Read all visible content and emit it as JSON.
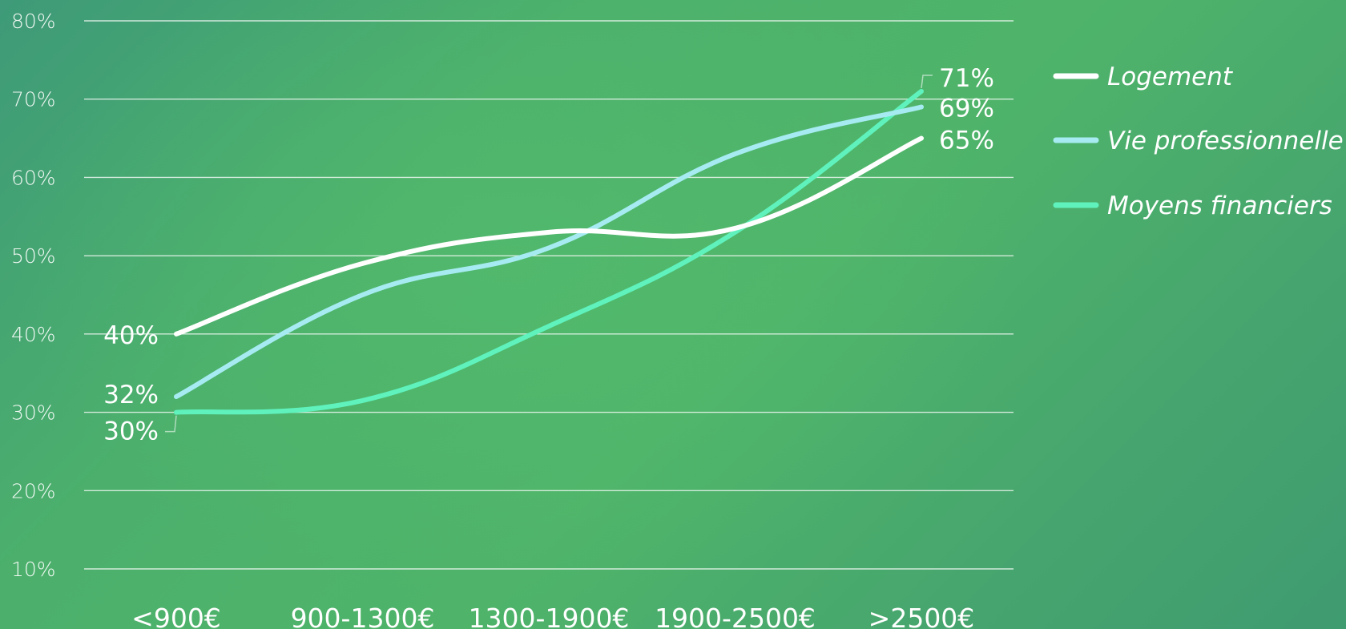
{
  "chart_data": {
    "type": "line",
    "title": "",
    "xlabel": "",
    "ylabel": "",
    "categories": [
      "<900€",
      "900-1300€",
      "1300-1900€",
      "1900-2500€",
      ">2500€"
    ],
    "y_ticks": [
      "10%",
      "20%",
      "30%",
      "40%",
      "50%",
      "60%",
      "70%",
      "80%"
    ],
    "ylim": [
      10,
      80
    ],
    "grid": true,
    "legend_position": "right",
    "series": [
      {
        "name": "Logement",
        "color": "#ffffff",
        "values": [
          40,
          49,
          53,
          53.5,
          65
        ],
        "start_label": "40%",
        "end_label": "65%"
      },
      {
        "name": "Vie professionnelle",
        "color": "#a7ebf2",
        "values": [
          32,
          45,
          51,
          63,
          69
        ],
        "start_label": "32%",
        "end_label": "69%"
      },
      {
        "name": "Moyens financiers",
        "color": "#5ff2bd",
        "values": [
          30,
          31.5,
          41,
          53,
          71
        ],
        "start_label": "30%",
        "end_label": "71%"
      }
    ]
  }
}
